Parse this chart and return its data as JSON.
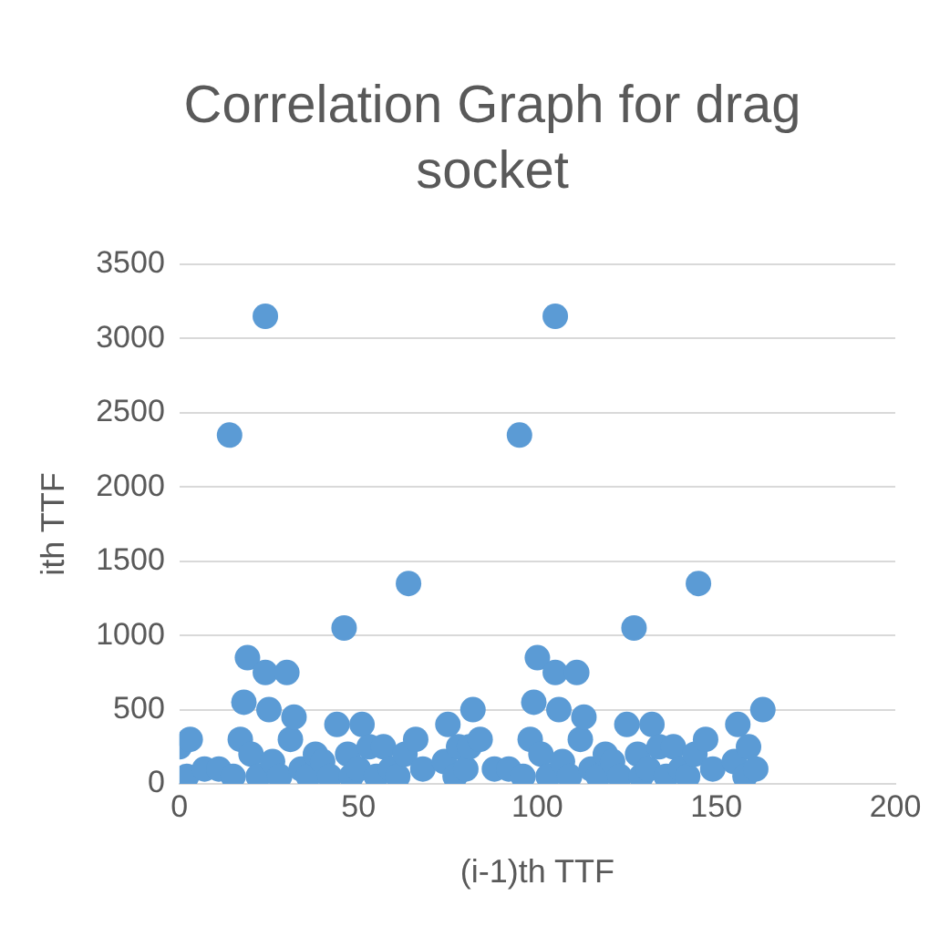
{
  "chart_data": {
    "type": "scatter",
    "title": "Correlation Graph for drag socket",
    "xlabel": "(i-1)th TTF",
    "ylabel": "ith TTF",
    "color": "#5b9bd5",
    "marker": "circle",
    "grid": "y",
    "legend": false,
    "xlim": [
      0,
      200
    ],
    "xticks": [
      0,
      50,
      100,
      150,
      200
    ],
    "ylim": [
      0,
      3500
    ],
    "yticks": [
      0,
      500,
      1000,
      1500,
      2000,
      2500,
      3000,
      3500
    ],
    "x": [
      0,
      2,
      3,
      7,
      11,
      14,
      15,
      17,
      18,
      19,
      20,
      22,
      24,
      24,
      25,
      26,
      28,
      30,
      31,
      32,
      34,
      36,
      38,
      40,
      42,
      44,
      46,
      47,
      48,
      50,
      51,
      53,
      55,
      57,
      59,
      61,
      63,
      64,
      66,
      68,
      74,
      75,
      77,
      78,
      80,
      82,
      81,
      84,
      88,
      92,
      95,
      96,
      98,
      99,
      100,
      101,
      103,
      105,
      105,
      106,
      107,
      109,
      111,
      112,
      113,
      115,
      117,
      119,
      121,
      123,
      125,
      127,
      128,
      129,
      131,
      132,
      134,
      136,
      138,
      140,
      142,
      144,
      145,
      147,
      149,
      155,
      156,
      158,
      159,
      161,
      163
    ],
    "values": [
      250,
      50,
      300,
      100,
      100,
      2350,
      50,
      300,
      550,
      850,
      200,
      50,
      3150,
      750,
      500,
      150,
      50,
      750,
      300,
      450,
      100,
      50,
      200,
      150,
      50,
      400,
      1050,
      200,
      50,
      100,
      400,
      250,
      50,
      250,
      100,
      50,
      200,
      1350,
      300,
      100,
      150,
      400,
      50,
      250,
      100,
      500,
      250,
      300,
      100,
      100,
      2350,
      50,
      300,
      550,
      850,
      200,
      50,
      3150,
      750,
      500,
      150,
      50,
      750,
      300,
      450,
      100,
      50,
      200,
      150,
      50,
      400,
      1050,
      200,
      50,
      100,
      400,
      250,
      50,
      250,
      100,
      50,
      200,
      1350,
      300,
      100,
      150,
      400,
      50,
      250,
      100,
      500
    ]
  }
}
